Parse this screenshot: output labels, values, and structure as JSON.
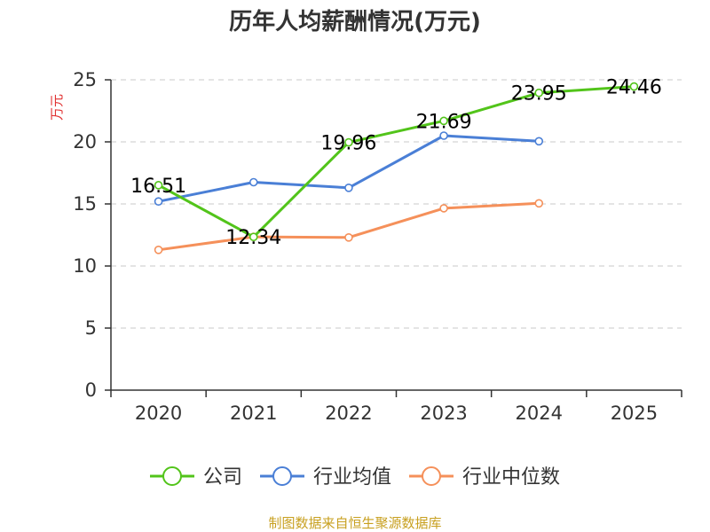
{
  "chart_data": {
    "type": "line",
    "title": "历年人均薪酬情况(万元)",
    "ylabel": "万元",
    "categories": [
      "2020",
      "2021",
      "2022",
      "2023",
      "2024",
      "2025"
    ],
    "ylim": [
      0,
      25
    ],
    "yticks": [
      0,
      5,
      10,
      15,
      20,
      25
    ],
    "grid": true,
    "legend_position": "bottom",
    "series": [
      {
        "name": "公司",
        "color": "#52c41a",
        "values": [
          16.51,
          12.34,
          19.96,
          21.69,
          23.95,
          24.46
        ],
        "labels": [
          "16.51",
          "12.34",
          "19.96",
          "21.69",
          "23.95",
          "24.46"
        ]
      },
      {
        "name": "行业均值",
        "color": "#4a7fd6",
        "values": [
          15.2,
          16.75,
          16.3,
          20.5,
          20.05,
          null
        ],
        "labels": null
      },
      {
        "name": "行业中位数",
        "color": "#f5905a",
        "values": [
          11.3,
          12.35,
          12.3,
          14.65,
          15.05,
          null
        ],
        "labels": null
      }
    ]
  },
  "footer": {
    "source": "制图数据来自恒生聚源数据库"
  }
}
